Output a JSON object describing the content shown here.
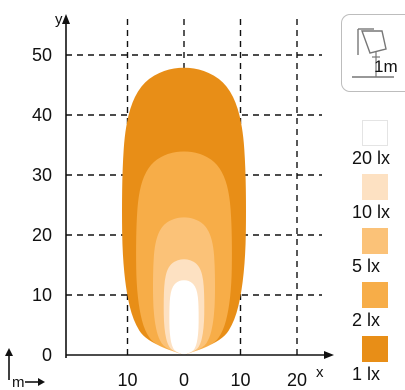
{
  "axes": {
    "x_label": "x",
    "y_label": "y",
    "unit": "m",
    "x_ticks": [
      {
        "value": -10,
        "label": "10"
      },
      {
        "value": 0,
        "label": "0"
      },
      {
        "value": 10,
        "label": "10"
      },
      {
        "value": 20,
        "label": "20"
      }
    ],
    "y_ticks": [
      {
        "value": 0,
        "label": "0"
      },
      {
        "value": 10,
        "label": "10"
      },
      {
        "value": 20,
        "label": "20"
      },
      {
        "value": 30,
        "label": "30"
      },
      {
        "value": 40,
        "label": "40"
      },
      {
        "value": 50,
        "label": "50"
      }
    ],
    "xlim": [
      -20,
      25
    ],
    "ylim": [
      0,
      55
    ],
    "grid": true
  },
  "mounting": {
    "icon": "lamp-mount-icon",
    "height_label": "1m"
  },
  "isolux": [
    {
      "label": "1 lx",
      "color": "#e88e17",
      "max_distance_m": 48,
      "max_halfwidth_m": 11
    },
    {
      "label": "2 lx",
      "color": "#f7ad48",
      "max_distance_m": 34,
      "max_halfwidth_m": 8.5
    },
    {
      "label": "5 lx",
      "color": "#fbc278",
      "max_distance_m": 23,
      "max_halfwidth_m": 5.5
    },
    {
      "label": "10 lx",
      "color": "#fde1c2",
      "max_distance_m": 16,
      "max_halfwidth_m": 3.6
    },
    {
      "label": "20 lx",
      "color": "#ffffff",
      "max_distance_m": 12.5,
      "max_halfwidth_m": 2.6
    }
  ]
}
